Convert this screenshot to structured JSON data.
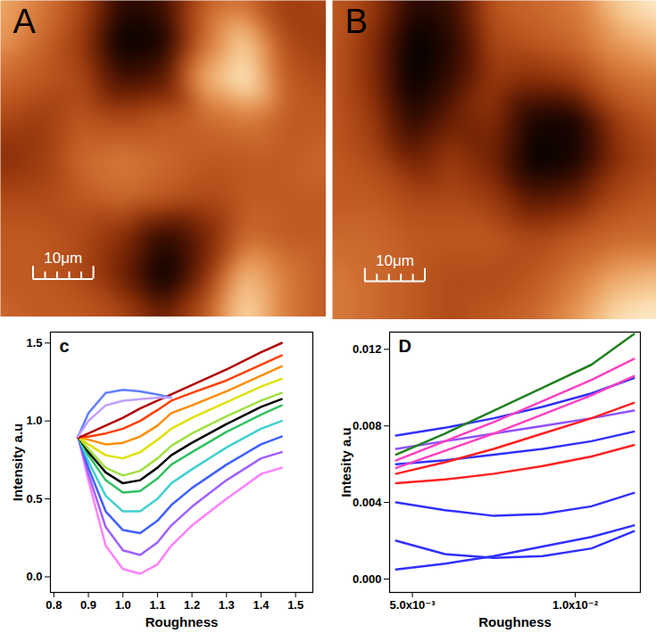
{
  "chart_data": [
    {
      "type": "heatmap",
      "title": "A",
      "tick_labels": false,
      "xlim": [
        0,
        54
      ],
      "ylim": [
        0,
        54
      ],
      "scale_bar": {
        "length": 10,
        "label": "10μm",
        "ticks": [
          0,
          2,
          4,
          6,
          8,
          10
        ]
      },
      "cells": [
        [
          0.75,
          0.6,
          0.45,
          0.15,
          0.2,
          0.5,
          0.55,
          0.4,
          0.45
        ],
        [
          0.7,
          0.55,
          0.4,
          0.05,
          0.1,
          0.55,
          0.85,
          0.45,
          0.4
        ],
        [
          0.55,
          0.5,
          0.45,
          0.2,
          0.25,
          0.75,
          0.95,
          0.5,
          0.45
        ],
        [
          0.45,
          0.4,
          0.5,
          0.45,
          0.5,
          0.55,
          0.6,
          0.5,
          0.5
        ],
        [
          0.35,
          0.4,
          0.55,
          0.6,
          0.55,
          0.5,
          0.5,
          0.5,
          0.55
        ],
        [
          0.45,
          0.45,
          0.5,
          0.55,
          0.5,
          0.45,
          0.5,
          0.5,
          0.5
        ],
        [
          0.5,
          0.5,
          0.45,
          0.35,
          0.15,
          0.3,
          0.55,
          0.5,
          0.5
        ],
        [
          0.5,
          0.5,
          0.45,
          0.3,
          0.05,
          0.35,
          0.8,
          0.6,
          0.5
        ],
        [
          0.55,
          0.5,
          0.5,
          0.45,
          0.3,
          0.5,
          0.9,
          0.6,
          0.5
        ]
      ]
    },
    {
      "type": "heatmap",
      "title": "B",
      "tick_labels": false,
      "xlim": [
        0,
        54
      ],
      "ylim": [
        0,
        54
      ],
      "scale_bar": {
        "length": 10,
        "label": "10μm",
        "ticks": [
          0,
          2,
          4,
          6,
          8,
          10
        ]
      },
      "cells": [
        [
          0.5,
          0.4,
          0.15,
          0.2,
          0.5,
          0.55,
          0.6,
          0.85,
          0.95
        ],
        [
          0.5,
          0.35,
          0.05,
          0.15,
          0.45,
          0.5,
          0.55,
          0.7,
          0.8
        ],
        [
          0.5,
          0.35,
          0.05,
          0.2,
          0.4,
          0.35,
          0.4,
          0.55,
          0.6
        ],
        [
          0.5,
          0.4,
          0.15,
          0.3,
          0.35,
          0.1,
          0.1,
          0.4,
          0.5
        ],
        [
          0.5,
          0.45,
          0.3,
          0.4,
          0.3,
          0.05,
          0.1,
          0.35,
          0.45
        ],
        [
          0.5,
          0.5,
          0.45,
          0.45,
          0.4,
          0.25,
          0.3,
          0.45,
          0.5
        ],
        [
          0.55,
          0.55,
          0.5,
          0.5,
          0.5,
          0.45,
          0.5,
          0.55,
          0.55
        ],
        [
          0.6,
          0.55,
          0.5,
          0.45,
          0.45,
          0.5,
          0.6,
          0.75,
          0.8
        ],
        [
          0.6,
          0.55,
          0.5,
          0.45,
          0.5,
          0.55,
          0.7,
          0.9,
          0.95
        ]
      ]
    },
    {
      "type": "line",
      "title": "c",
      "x_label": "Roughness",
      "y_label": "Intensity a.u",
      "xlim": [
        0.79,
        1.55
      ],
      "xticks": [
        0.8,
        0.9,
        {
          "value": 1,
          "label": "1.0"
        },
        1.1,
        1.2,
        1.3,
        1.4,
        1.5
      ],
      "ylim": [
        -0.1,
        1.57
      ],
      "yticks": [
        {
          "value": 0,
          "label": "0.0"
        },
        0.5,
        {
          "value": 1,
          "label": "1.0"
        },
        1.5
      ],
      "x": [
        0.87,
        0.9,
        0.95,
        1.0,
        1.05,
        1.1,
        1.14,
        1.2,
        1.3,
        1.4,
        1.46
      ],
      "series": [
        {
          "color": "#ff80ff",
          "values": [
            0.9,
            0.62,
            0.2,
            0.05,
            0.02,
            0.08,
            0.2,
            0.33,
            0.5,
            0.66,
            0.7
          ]
        },
        {
          "color": "#a060ff",
          "values": [
            0.9,
            0.66,
            0.32,
            0.17,
            0.14,
            0.22,
            0.33,
            0.45,
            0.62,
            0.76,
            0.8
          ]
        },
        {
          "color": "#4060ff",
          "values": [
            0.9,
            0.7,
            0.42,
            0.3,
            0.28,
            0.36,
            0.46,
            0.57,
            0.72,
            0.85,
            0.9
          ]
        },
        {
          "color": "#40d0d0",
          "values": [
            0.9,
            0.74,
            0.52,
            0.42,
            0.42,
            0.5,
            0.6,
            0.69,
            0.83,
            0.95,
            1.0
          ]
        },
        {
          "color": "#30c060",
          "values": [
            0.9,
            0.78,
            0.62,
            0.54,
            0.55,
            0.63,
            0.72,
            0.8,
            0.93,
            1.04,
            1.1
          ]
        },
        {
          "color": "#000000",
          "values": [
            0.9,
            0.8,
            0.67,
            0.6,
            0.62,
            0.7,
            0.78,
            0.86,
            0.98,
            1.09,
            1.14
          ]
        },
        {
          "color": "#a0e040",
          "values": [
            0.9,
            0.82,
            0.7,
            0.65,
            0.68,
            0.76,
            0.84,
            0.92,
            1.03,
            1.13,
            1.18
          ]
        },
        {
          "color": "#e0e000",
          "values": [
            0.9,
            0.85,
            0.78,
            0.76,
            0.8,
            0.88,
            0.95,
            1.02,
            1.12,
            1.22,
            1.27
          ]
        },
        {
          "color": "#ff8c00",
          "values": [
            0.9,
            0.88,
            0.85,
            0.86,
            0.9,
            0.97,
            1.05,
            1.1,
            1.19,
            1.29,
            1.35
          ]
        },
        {
          "color": "#ff4000",
          "values": [
            0.9,
            0.9,
            0.92,
            0.95,
            1.0,
            1.07,
            1.13,
            1.18,
            1.26,
            1.36,
            1.42
          ]
        },
        {
          "color": "#b00000",
          "values": [
            0.89,
            0.92,
            0.97,
            1.02,
            1.08,
            1.13,
            1.17,
            1.23,
            1.33,
            1.44,
            1.5
          ]
        },
        {
          "color": "#6080ff",
          "values": [
            0.9,
            1.05,
            1.18,
            1.2,
            1.19,
            1.17,
            1.15,
            null,
            null,
            null,
            null
          ]
        },
        {
          "color": "#c0a0ff",
          "values": [
            0.9,
            1.0,
            1.1,
            1.13,
            1.14,
            1.15,
            1.15,
            null,
            null,
            null,
            null
          ]
        }
      ]
    },
    {
      "type": "line",
      "title": "D",
      "x_label": "Roughness",
      "y_label": "Intesity a.u",
      "xlim": [
        0.0043,
        0.012
      ],
      "xticks": [
        {
          "value": 0.005,
          "label": "5.0x10⁻³"
        },
        {
          "value": 0.01,
          "label": "1.0x10⁻²"
        }
      ],
      "ylim": [
        -0.0007,
        0.0129
      ],
      "yticks": [
        {
          "value": 0,
          "label": "0.000"
        },
        0.004,
        0.008,
        0.012
      ],
      "x": [
        0.0045,
        0.006,
        0.0075,
        0.009,
        0.0105,
        0.0118
      ],
      "series": [
        {
          "color": "#3030ff",
          "values": [
            0.0005,
            0.0008,
            0.0012,
            0.0017,
            0.0022,
            0.0028
          ]
        },
        {
          "color": "#3030ff",
          "values": [
            0.002,
            0.0013,
            0.0011,
            0.0012,
            0.0016,
            0.0025
          ]
        },
        {
          "color": "#3030ff",
          "values": [
            0.004,
            0.0036,
            0.0033,
            0.0034,
            0.0038,
            0.0045
          ]
        },
        {
          "color": "#3030ff",
          "values": [
            0.006,
            0.0062,
            0.0065,
            0.0068,
            0.0072,
            0.0077
          ]
        },
        {
          "color": "#3030ff",
          "values": [
            0.0075,
            0.0079,
            0.0084,
            0.009,
            0.0097,
            0.0105
          ]
        },
        {
          "color": "#9050ff",
          "values": [
            0.0068,
            0.0072,
            0.0076,
            0.008,
            0.0084,
            0.0088
          ]
        },
        {
          "color": "#ff2020",
          "values": [
            0.005,
            0.0052,
            0.0055,
            0.0059,
            0.0064,
            0.007
          ]
        },
        {
          "color": "#ff2020",
          "values": [
            0.0055,
            0.0061,
            0.0068,
            0.0076,
            0.0084,
            0.0092
          ]
        },
        {
          "color": "#ff40c0",
          "values": [
            0.0058,
            0.0067,
            0.0076,
            0.0086,
            0.0096,
            0.0106
          ]
        },
        {
          "color": "#ff40c0",
          "values": [
            0.0062,
            0.0072,
            0.0082,
            0.0093,
            0.0104,
            0.0115
          ]
        },
        {
          "color": "#208020",
          "values": [
            0.0065,
            0.0076,
            0.0088,
            0.01,
            0.0112,
            0.0128
          ]
        }
      ]
    }
  ]
}
